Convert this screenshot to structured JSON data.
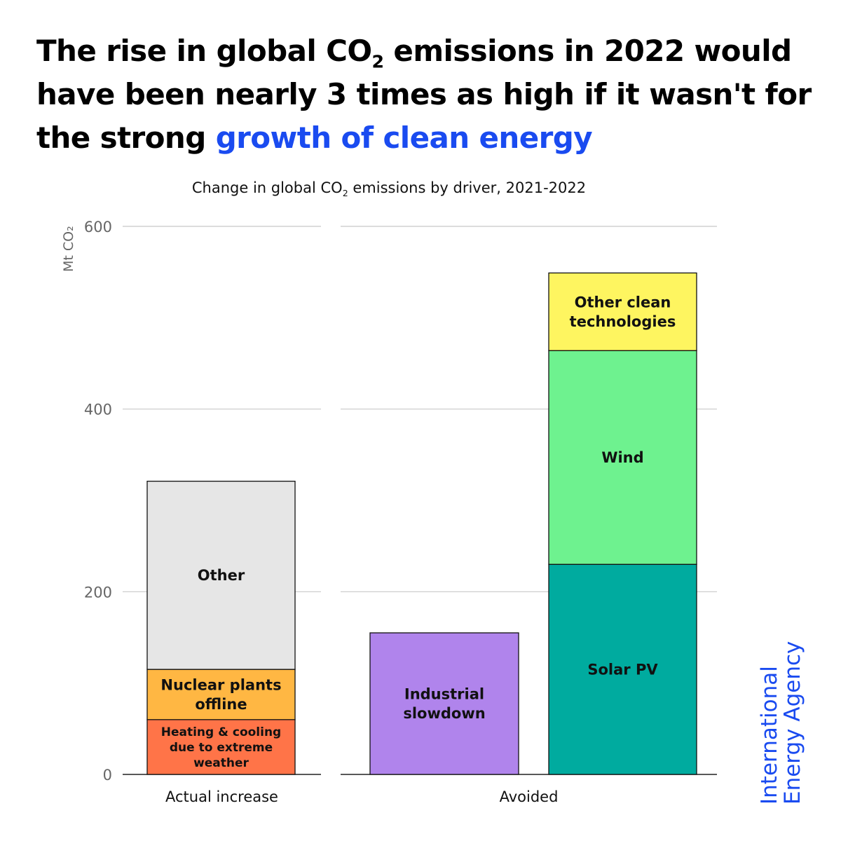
{
  "headline": {
    "part1": "The rise in global CO",
    "sub": "2",
    "part2": " emissions in 2022 would have been nearly 3 times as high if it wasn't for the strong ",
    "highlight": "growth of clean energy",
    "highlight_color": "#1a4bf0"
  },
  "chart_data": {
    "type": "bar",
    "stacked": true,
    "title_part1": "Change in global CO",
    "title_sub": "2",
    "title_part2": " emissions by driver, 2021-2022",
    "ylabel": "Mt CO₂",
    "ylim": [
      0,
      600
    ],
    "yticks": [
      0,
      200,
      400,
      600
    ],
    "grid": true,
    "groups": [
      {
        "label": "Actual increase",
        "bars": [
          {
            "segments": [
              {
                "label": "Heating & cooling due to extreme weather",
                "value": 60,
                "color": "#ff7448"
              },
              {
                "label": "Nuclear plants offline",
                "value": 55,
                "color": "#ffb743"
              },
              {
                "label": "Other",
                "value": 206,
                "color": "#e6e6e6"
              }
            ]
          }
        ]
      },
      {
        "label": "Avoided",
        "bars": [
          {
            "segments": [
              {
                "label": "Industrial slowdown",
                "value": 155,
                "color": "#b084ec"
              }
            ]
          },
          {
            "segments": [
              {
                "label": "Solar PV",
                "value": 230,
                "color": "#00ab9f"
              },
              {
                "label": "Wind",
                "value": 234,
                "color": "#6ef28f"
              },
              {
                "label": "Other clean technologies",
                "value": 85,
                "color": "#fef560"
              }
            ]
          }
        ]
      }
    ]
  },
  "brand": {
    "line1": "International",
    "line2": "Energy Agency",
    "color": "#1a4bf0"
  }
}
